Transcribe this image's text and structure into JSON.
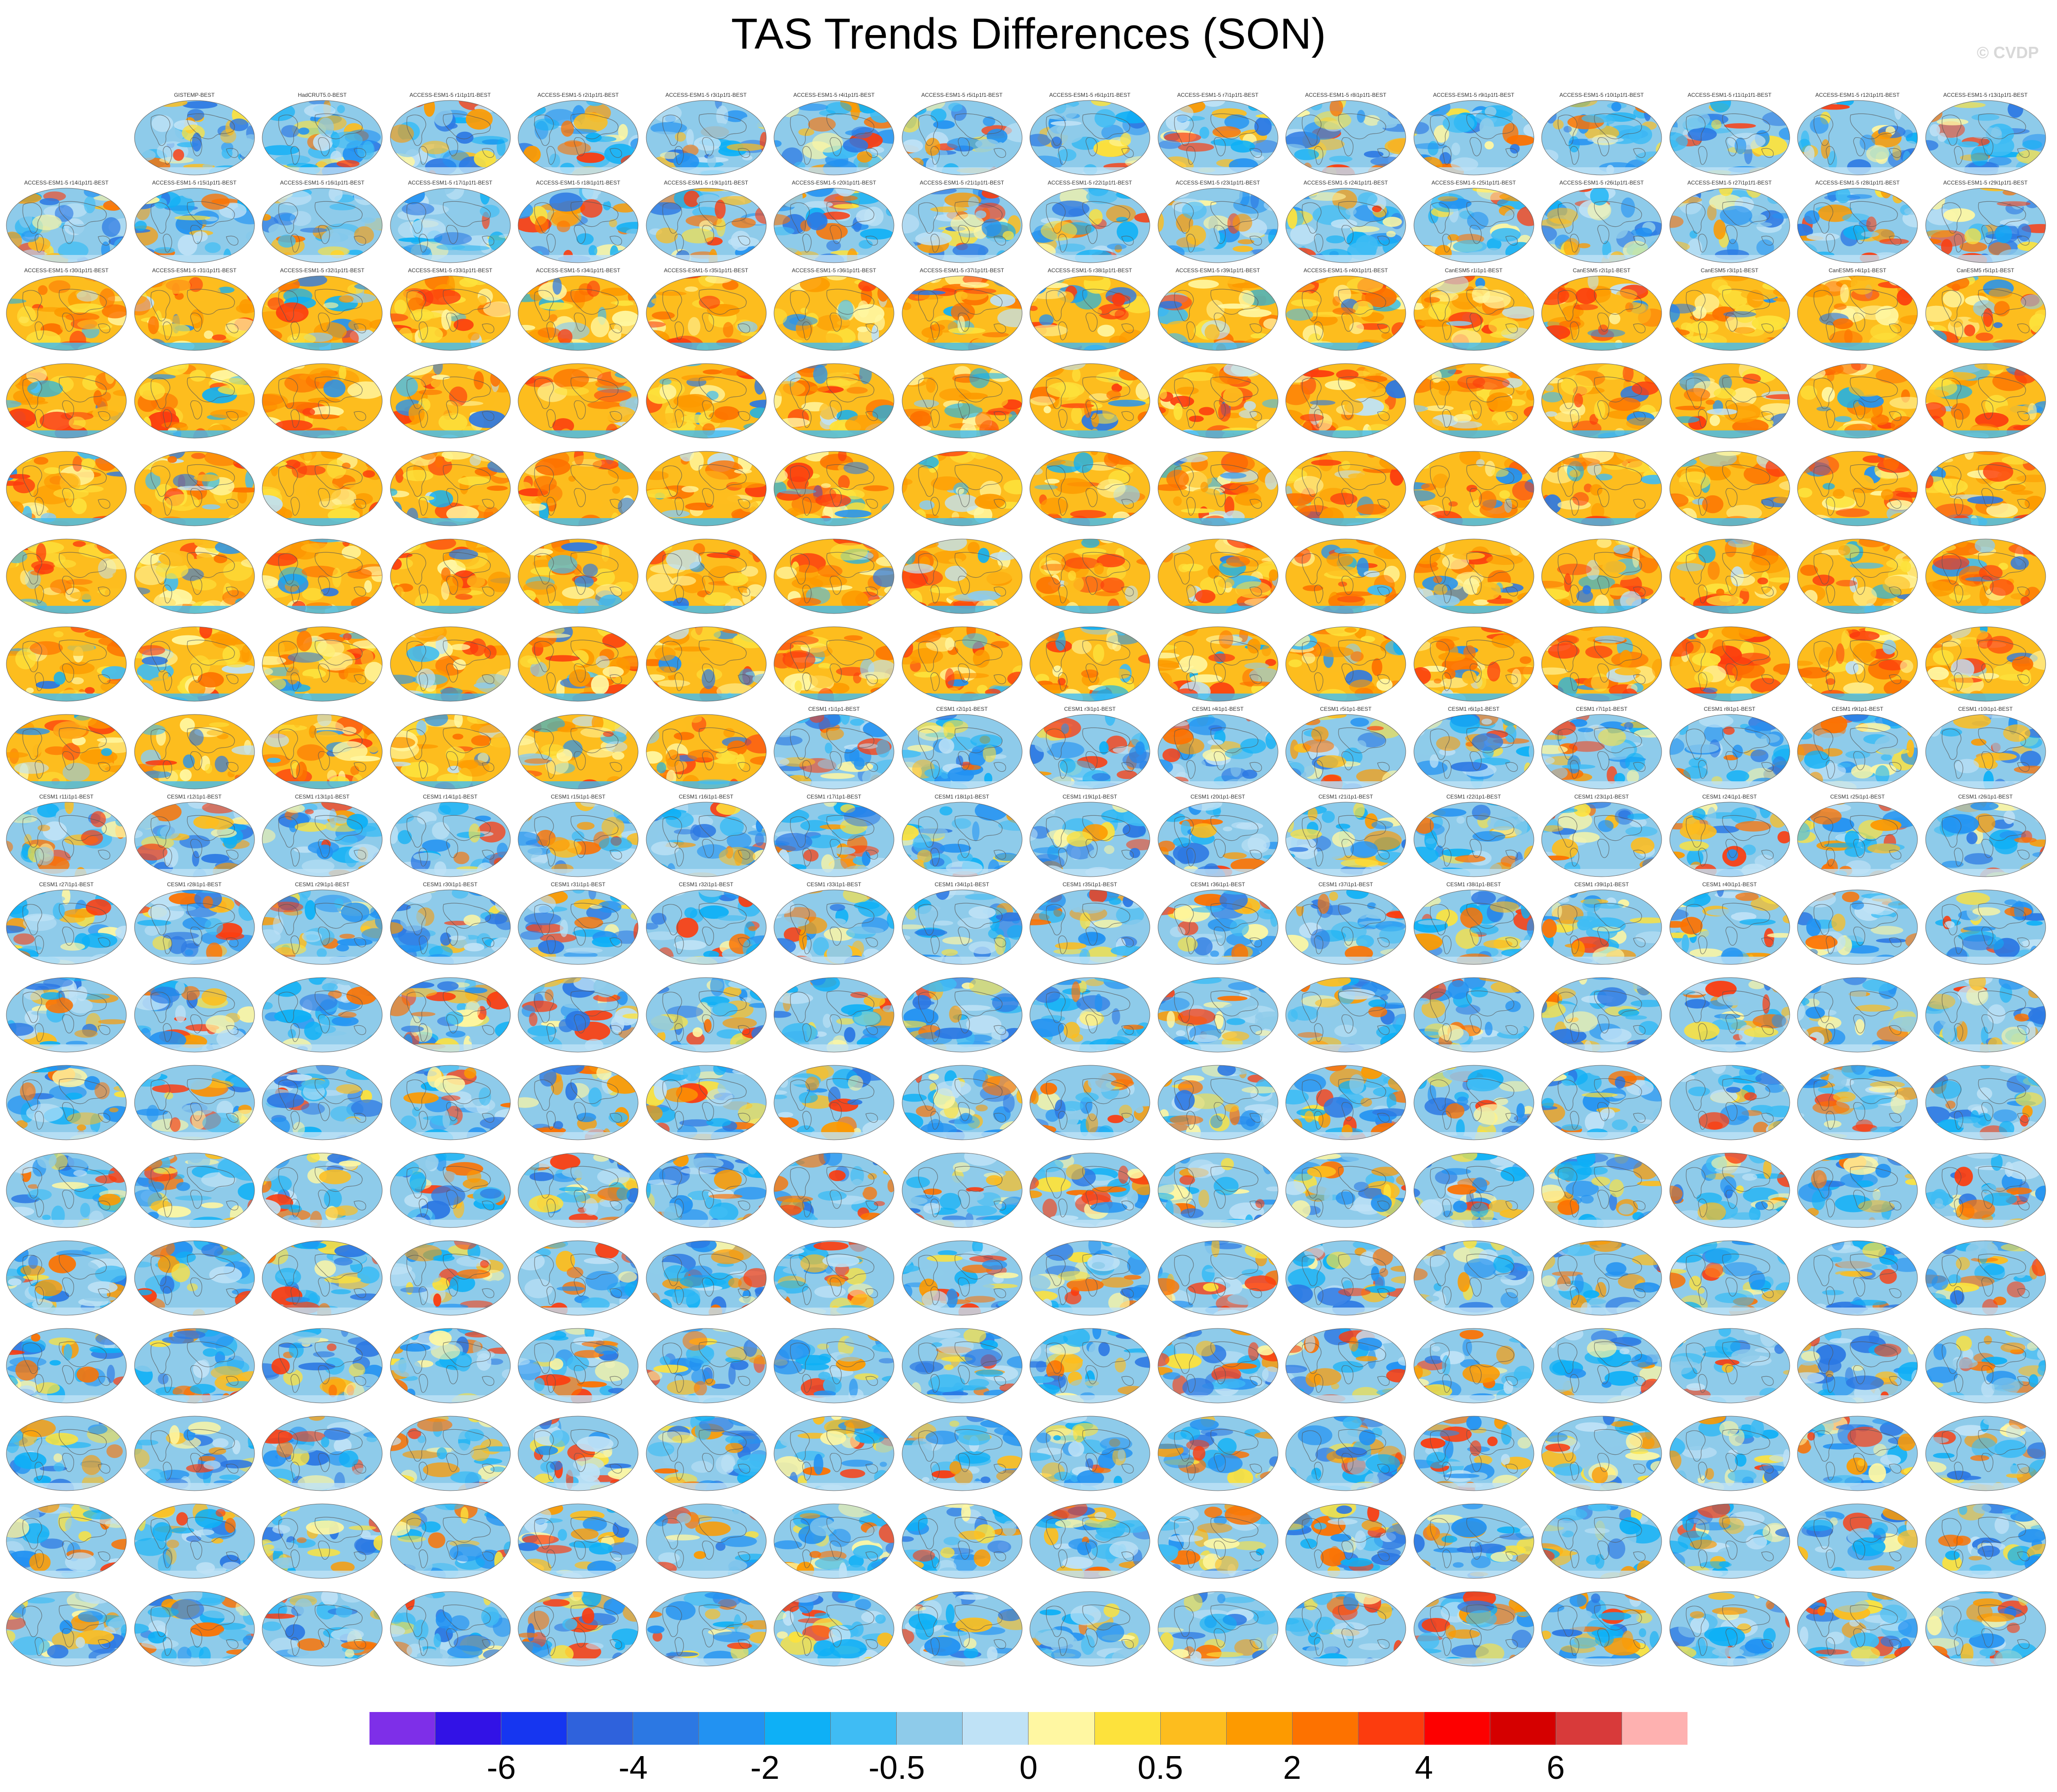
{
  "title": "TAS Trends Differences (SON)",
  "watermark": "© CVDP",
  "panels": {
    "row1": [
      "GISTEMP-BEST",
      "HadCRUT5.0-BEST",
      "ACCESS-ESM1-5 r1i1p1f1-BEST",
      "ACCESS-ESM1-5 r2i1p1f1-BEST",
      "ACCESS-ESM1-5 r3i1p1f1-BEST",
      "ACCESS-ESM1-5 r4i1p1f1-BEST",
      "ACCESS-ESM1-5 r5i1p1f1-BEST",
      "ACCESS-ESM1-5 r6i1p1f1-BEST",
      "ACCESS-ESM1-5 r7i1p1f1-BEST",
      "ACCESS-ESM1-5 r8i1p1f1-BEST",
      "ACCESS-ESM1-5 r9i1p1f1-BEST",
      "ACCESS-ESM1-5 r10i1p1f1-BEST",
      "ACCESS-ESM1-5 r11i1p1f1-BEST",
      "ACCESS-ESM1-5 r12i1p1f1-BEST",
      "ACCESS-ESM1-5 r13i1p1f1-BEST"
    ],
    "row2": [
      "ACCESS-ESM1-5 r14i1p1f1-BEST",
      "ACCESS-ESM1-5 r15i1p1f1-BEST",
      "ACCESS-ESM1-5 r16i1p1f1-BEST",
      "ACCESS-ESM1-5 r17i1p1f1-BEST",
      "ACCESS-ESM1-5 r18i1p1f1-BEST",
      "ACCESS-ESM1-5 r19i1p1f1-BEST",
      "ACCESS-ESM1-5 r20i1p1f1-BEST",
      "ACCESS-ESM1-5 r21i1p1f1-BEST",
      "ACCESS-ESM1-5 r22i1p1f1-BEST",
      "ACCESS-ESM1-5 r23i1p1f1-BEST",
      "ACCESS-ESM1-5 r24i1p1f1-BEST",
      "ACCESS-ESM1-5 r25i1p1f1-BEST",
      "ACCESS-ESM1-5 r26i1p1f1-BEST",
      "ACCESS-ESM1-5 r27i1p1f1-BEST",
      "ACCESS-ESM1-5 r28i1p1f1-BEST",
      "ACCESS-ESM1-5 r29i1p1f1-BEST"
    ],
    "row3": [
      "ACCESS-ESM1-5 r30i1p1f1-BEST",
      "ACCESS-ESM1-5 r31i1p1f1-BEST",
      "ACCESS-ESM1-5 r32i1p1f1-BEST",
      "ACCESS-ESM1-5 r33i1p1f1-BEST",
      "ACCESS-ESM1-5 r34i1p1f1-BEST",
      "ACCESS-ESM1-5 r35i1p1f1-BEST",
      "ACCESS-ESM1-5 r36i1p1f1-BEST",
      "ACCESS-ESM1-5 r37i1p1f1-BEST",
      "ACCESS-ESM1-5 r38i1p1f1-BEST",
      "ACCESS-ESM1-5 r39i1p1f1-BEST",
      "ACCESS-ESM1-5 r40i1p1f1-BEST",
      "CanESM5 r1i1p1-BEST",
      "CanESM5 r2i1p1-BEST",
      "CanESM5 r3i1p1-BEST",
      "CanESM5 r4i1p1-BEST",
      "CanESM5 r5i1p1-BEST"
    ],
    "row8": [
      "CESM1 r1i1p1-BEST",
      "CESM1 r2i1p1-BEST",
      "CESM1 r3i1p1-BEST",
      "CESM1 r4i1p1-BEST",
      "CESM1 r5i1p1-BEST",
      "CESM1 r6i1p1-BEST",
      "CESM1 r7i1p1-BEST",
      "CESM1 r8i1p1-BEST",
      "CESM1 r9i1p1-BEST",
      "CESM1 r10i1p1-BEST"
    ],
    "row9": [
      "CESM1 r11i1p1-BEST",
      "CESM1 r12i1p1-BEST",
      "CESM1 r13i1p1-BEST",
      "CESM1 r14i1p1-BEST",
      "CESM1 r15i1p1-BEST",
      "CESM1 r16i1p1-BEST",
      "CESM1 r17i1p1-BEST",
      "CESM1 r18i1p1-BEST",
      "CESM1 r19i1p1-BEST",
      "CESM1 r20i1p1-BEST",
      "CESM1 r21i1p1-BEST",
      "CESM1 r22i1p1-BEST",
      "CESM1 r23i1p1-BEST",
      "CESM1 r24i1p1-BEST",
      "CESM1 r25i1p1-BEST",
      "CESM1 r26i1p1-BEST"
    ],
    "row10": [
      "CESM1 r27i1p1-BEST",
      "CESM1 r28i1p1-BEST",
      "CESM1 r29i1p1-BEST",
      "CESM1 r30i1p1-BEST",
      "CESM1 r31i1p1-BEST",
      "CESM1 r32i1p1-BEST",
      "CESM1 r33i1p1-BEST",
      "CESM1 r34i1p1-BEST",
      "CESM1 r35i1p1-BEST",
      "CESM1 r36i1p1-BEST",
      "CESM1 r37i1p1-BEST",
      "CESM1 r38i1p1-BEST",
      "CESM1 r39i1p1-BEST",
      "CESM1 r40i1p1-BEST"
    ]
  },
  "colorbar": {
    "colors": [
      "#7e2fe8",
      "#3212e6",
      "#1636f0",
      "#2f62dc",
      "#2c78e3",
      "#2292f2",
      "#0eb0f6",
      "#3fbcf4",
      "#8ecbea",
      "#bfe2f6",
      "#fff7a2",
      "#fde23c",
      "#fdbd1e",
      "#fd9a00",
      "#fd7200",
      "#fc3c0e",
      "#fd0000",
      "#d50000",
      "#d83a3a",
      "#feb1b0"
    ],
    "labels": [
      "-6",
      "-4",
      "-2",
      "-0.5",
      "0",
      "0.5",
      "2",
      "4",
      "6"
    ]
  },
  "palette": {
    "warm": [
      "#fff7a2",
      "#fde23c",
      "#fdbd1e",
      "#fd9a00",
      "#fd7200",
      "#fc3c0e"
    ],
    "cool": [
      "#bfe2f6",
      "#8ecbea",
      "#3fbcf4",
      "#0eb0f6",
      "#2292f2",
      "#2c78e3"
    ],
    "land_line": "#555555"
  }
}
